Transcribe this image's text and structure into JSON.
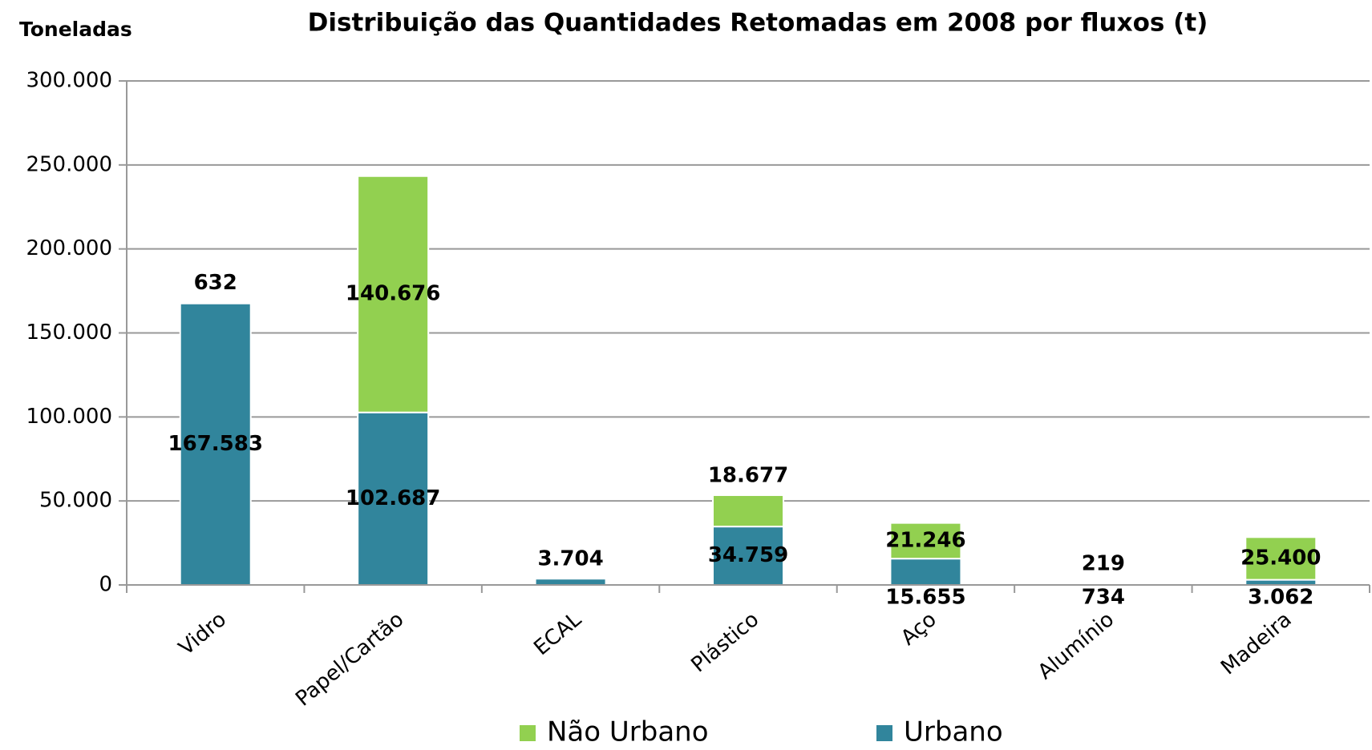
{
  "chart_data": {
    "type": "stacked_bar",
    "title": "Distribuição das Quantidades Retomadas em 2008 por fluxos (t)",
    "y_label": "Toneladas",
    "categories": [
      "Vidro",
      "Papel/Cartão",
      "ECAL",
      "Plástico",
      "Aço",
      "Alumínio",
      "Madeira"
    ],
    "series": [
      {
        "name": "Não Urbano",
        "color": "#92d050",
        "values": [
          632,
          140676,
          null,
          18677,
          21246,
          219,
          25400
        ],
        "value_labels": [
          "632",
          "140.676",
          null,
          "18.677",
          "21.246",
          "219",
          "25.400"
        ]
      },
      {
        "name": "Urbano",
        "color": "#31859c",
        "values": [
          167583,
          102687,
          3704,
          34759,
          15655,
          734,
          3062
        ],
        "value_labels": [
          "167.583",
          "102.687",
          "3.704",
          "34.759",
          "15.655",
          "734",
          "3.062"
        ]
      }
    ],
    "ylim": [
      0,
      300000
    ],
    "yticks": [
      0,
      {
        "value": 50000,
        "label": "50.000"
      },
      {
        "value": 100000,
        "label": "100.000"
      },
      {
        "value": 150000,
        "label": "150.000"
      },
      {
        "value": 200000,
        "label": "200.000"
      },
      {
        "value": 250000,
        "label": "250.000"
      },
      {
        "value": 300000,
        "label": "300.000"
      }
    ],
    "grid": true,
    "legend": "bottom"
  }
}
